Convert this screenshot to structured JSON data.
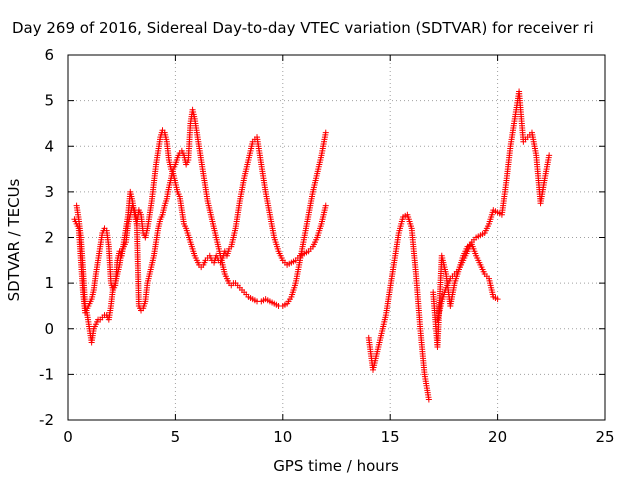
{
  "chart_data": {
    "type": "scatter",
    "title": "Day 269 of 2016, Sidereal Day-to-day VTEC variation (SDTVAR) for receiver ri",
    "xlabel": "GPS time / hours",
    "ylabel": "SDTVAR / TECUs",
    "xlim": [
      0,
      25
    ],
    "ylim": [
      -2,
      6
    ],
    "xticks": [
      "0",
      "5",
      "10",
      "15",
      "20",
      "25"
    ],
    "yticks": [
      "-2",
      "-1",
      "0",
      "1",
      "2",
      "3",
      "4",
      "5",
      "6"
    ],
    "grid": true,
    "legend": "none",
    "marker": "+",
    "color": "#ff0000",
    "series": [
      {
        "x": [
          0.3,
          0.5,
          0.6,
          0.7,
          0.8,
          0.9,
          1.0,
          1.1,
          1.2,
          1.3,
          1.4,
          1.5,
          1.6,
          1.7,
          1.8,
          1.9,
          2.0,
          2.1,
          2.2,
          2.3,
          2.4,
          2.5,
          2.6,
          2.7,
          2.8,
          2.9,
          3.0,
          3.1,
          3.2,
          3.3,
          3.4,
          3.5,
          3.6,
          3.7,
          3.8,
          3.9,
          4.0,
          4.1,
          4.2,
          4.3,
          4.4,
          4.5,
          4.6,
          4.7,
          4.8,
          4.9,
          5.0,
          5.1,
          5.2,
          5.3,
          5.4,
          5.5,
          5.6,
          5.7,
          5.8,
          5.9,
          6.0,
          6.1,
          6.2,
          6.3,
          6.4,
          6.5,
          6.6,
          6.7,
          6.8,
          6.9,
          7.0,
          7.1,
          7.2,
          7.3,
          7.4,
          7.5,
          7.6,
          7.7,
          7.8,
          7.9,
          8.0,
          8.2,
          8.4,
          8.6,
          8.8,
          9.0,
          9.2,
          9.4,
          9.6,
          9.8,
          10.0,
          10.2,
          10.4,
          10.6,
          10.8,
          11.0,
          11.2,
          11.4,
          11.6,
          11.8,
          12.0
        ],
        "y": [
          2.4,
          2.2,
          1.5,
          0.8,
          0.35,
          0.45,
          0.55,
          0.65,
          0.85,
          1.2,
          1.5,
          1.8,
          2.1,
          2.2,
          2.15,
          1.8,
          1.0,
          0.85,
          0.95,
          1.5,
          1.7,
          1.6,
          1.9,
          2.2,
          2.5,
          3.0,
          2.8,
          2.5,
          2.3,
          2.6,
          2.5,
          2.1,
          2.0,
          2.2,
          2.5,
          2.8,
          3.2,
          3.6,
          3.9,
          4.2,
          4.35,
          4.3,
          4.1,
          3.7,
          3.5,
          3.4,
          3.2,
          3.0,
          2.9,
          2.6,
          2.3,
          2.2,
          2.05,
          1.9,
          1.75,
          1.6,
          1.5,
          1.4,
          1.35,
          1.4,
          1.5,
          1.55,
          1.6,
          1.5,
          1.45,
          1.6,
          1.5,
          1.45,
          1.55,
          1.7,
          1.6,
          1.75,
          1.8,
          2.0,
          2.2,
          2.5,
          2.8,
          3.3,
          3.7,
          4.1,
          4.2,
          3.6,
          3.0,
          2.5,
          2.0,
          1.7,
          1.5,
          1.4,
          1.45,
          1.5,
          1.6,
          1.65,
          1.7,
          1.8,
          2.0,
          2.3,
          2.7
        ]
      },
      {
        "x": [
          0.4,
          0.5,
          0.6,
          0.7,
          0.8,
          0.9,
          1.0,
          1.1,
          1.2,
          1.3,
          1.4,
          1.5,
          1.6,
          1.7,
          1.8,
          1.9,
          2.0,
          2.1,
          2.2,
          2.3,
          2.4,
          2.5,
          2.6,
          2.7,
          2.8,
          2.9,
          3.0,
          3.1,
          3.2,
          3.3,
          3.4,
          3.5,
          3.6,
          3.7,
          3.8,
          3.9,
          4.0,
          4.1,
          4.2,
          4.3,
          4.4,
          4.5,
          4.6,
          4.7,
          4.8,
          4.9,
          5.0,
          5.1,
          5.2,
          5.3,
          5.4,
          5.5,
          5.6,
          5.7,
          5.8,
          5.9,
          6.0,
          6.1,
          6.2,
          6.3,
          6.4,
          6.5,
          6.6,
          6.7,
          6.8,
          6.9,
          7.0,
          7.1,
          7.2,
          7.3,
          7.4,
          7.5,
          7.6,
          7.7,
          7.8,
          7.9,
          8.0,
          8.2,
          8.4,
          8.6,
          8.8,
          9.0,
          9.2,
          9.4,
          9.6,
          9.8,
          10.0,
          10.2,
          10.4,
          10.6,
          10.8,
          11.0,
          11.2,
          11.4,
          11.6,
          11.8,
          12.0
        ],
        "y": [
          2.7,
          2.4,
          2.0,
          1.3,
          0.5,
          0.3,
          0.0,
          -0.3,
          0.0,
          0.1,
          0.2,
          0.2,
          0.25,
          0.3,
          0.3,
          0.2,
          0.5,
          0.9,
          1.0,
          1.2,
          1.4,
          1.7,
          1.8,
          1.9,
          2.3,
          2.5,
          2.7,
          2.6,
          2.4,
          0.5,
          0.4,
          0.45,
          0.6,
          1.0,
          1.2,
          1.4,
          1.6,
          1.9,
          2.2,
          2.4,
          2.5,
          2.7,
          2.85,
          3.1,
          3.3,
          3.5,
          3.6,
          3.75,
          3.85,
          3.9,
          3.8,
          3.6,
          3.7,
          4.5,
          4.8,
          4.6,
          4.3,
          4.0,
          3.7,
          3.4,
          3.1,
          2.8,
          2.6,
          2.4,
          2.2,
          2.0,
          1.8,
          1.6,
          1.4,
          1.2,
          1.1,
          1.0,
          0.95,
          1.0,
          1.0,
          0.95,
          0.9,
          0.8,
          0.7,
          0.65,
          0.6,
          0.6,
          0.65,
          0.6,
          0.55,
          0.5,
          0.5,
          0.55,
          0.7,
          1.0,
          1.5,
          2.0,
          2.5,
          3.0,
          3.4,
          3.8,
          4.3
        ]
      },
      {
        "x": [
          14.0,
          14.2,
          14.4,
          14.6,
          14.8,
          15.0,
          15.2,
          15.4,
          15.6,
          15.8,
          16.0,
          16.2,
          16.4,
          16.6,
          16.8
        ],
        "y": [
          -0.2,
          -0.9,
          -0.5,
          -0.1,
          0.3,
          0.9,
          1.5,
          2.1,
          2.45,
          2.5,
          2.2,
          1.2,
          0.0,
          -1.0,
          -1.55
        ]
      },
      {
        "x": [
          17.0,
          17.2,
          17.4,
          17.6,
          17.8,
          18.0,
          18.2,
          18.4,
          18.6,
          18.8,
          19.0,
          19.2,
          19.4,
          19.6,
          19.8,
          20.0,
          20.2,
          20.4,
          20.6,
          20.8,
          21.0,
          21.2,
          21.4,
          21.6,
          21.8,
          22.0,
          22.2,
          22.4
        ],
        "y": [
          0.8,
          -0.4,
          1.6,
          1.2,
          0.5,
          1.0,
          1.3,
          1.5,
          1.7,
          1.9,
          2.0,
          2.05,
          2.1,
          2.3,
          2.6,
          2.55,
          2.5,
          3.2,
          4.0,
          4.6,
          5.2,
          4.1,
          4.2,
          4.3,
          3.8,
          2.75,
          3.3,
          3.8
        ]
      },
      {
        "x": [
          17.2,
          17.4,
          17.6,
          17.8,
          18.0,
          18.2,
          18.4,
          18.6,
          18.8,
          19.0,
          19.2,
          19.4,
          19.6,
          19.8,
          20.0
        ],
        "y": [
          0.2,
          0.6,
          0.9,
          1.1,
          1.2,
          1.3,
          1.6,
          1.8,
          1.85,
          1.6,
          1.4,
          1.2,
          1.1,
          0.7,
          0.65
        ]
      }
    ]
  }
}
